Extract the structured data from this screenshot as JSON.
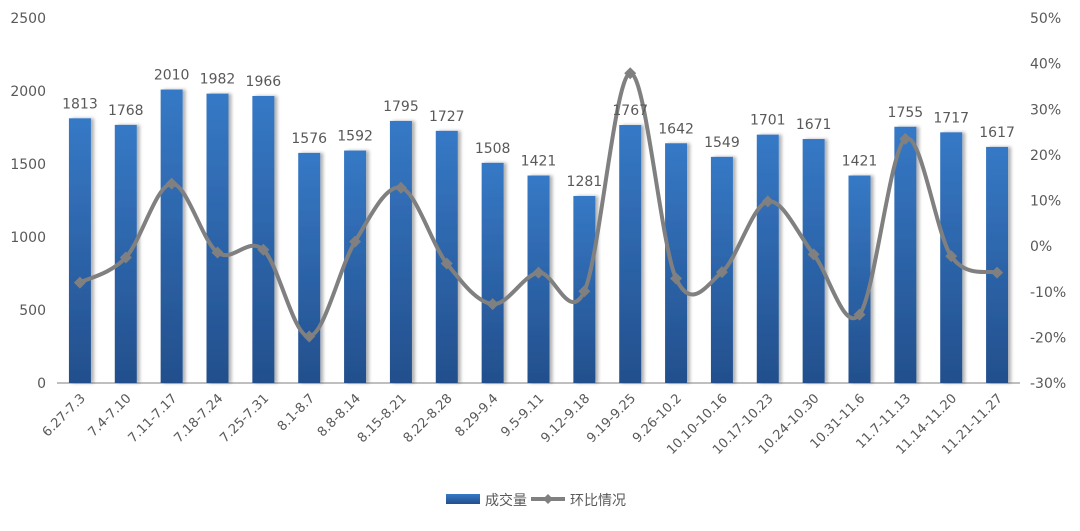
{
  "chart_data": {
    "type": "bar+line",
    "title": "",
    "categories": [
      "6.27-7.3",
      "7.4-7.10",
      "7.11-7.17",
      "7.18-7.24",
      "7.25-7.31",
      "8.1-8.7",
      "8.8-8.14",
      "8.15-8.21",
      "8.22-8.28",
      "8.29-9.4",
      "9.5-9.11",
      "9.12-9.18",
      "9.19-9.25",
      "9.26-10.2",
      "10.10-10.16",
      "10.17-10.23",
      "10.24-10.30",
      "10.31-11.6",
      "11.7-11.13",
      "11.14-11.20",
      "11.21-11.27"
    ],
    "series": [
      {
        "name": "成交量",
        "type": "bar",
        "axis": "left",
        "color": "#2e6bb5",
        "values": [
          1813,
          1768,
          2010,
          1982,
          1966,
          1576,
          1592,
          1795,
          1727,
          1508,
          1421,
          1281,
          1767,
          1642,
          1549,
          1701,
          1671,
          1421,
          1755,
          1717,
          1617
        ]
      },
      {
        "name": "环比情况",
        "type": "line",
        "axis": "right",
        "color": "#808080",
        "values": [
          -8.0,
          -2.5,
          13.7,
          -1.4,
          -0.8,
          -19.8,
          1.0,
          12.8,
          -3.8,
          -12.7,
          -5.8,
          -9.9,
          37.9,
          -7.1,
          -5.7,
          9.8,
          -1.8,
          -15.0,
          23.5,
          -2.2,
          -5.8
        ]
      }
    ],
    "y_left": {
      "ylim": [
        0,
        2500
      ],
      "ticks": [
        "0",
        "500",
        "1000",
        "1500",
        "2000",
        "2500"
      ]
    },
    "y_right": {
      "ylim": [
        -30,
        50
      ],
      "ticks": [
        "-30%",
        "-20%",
        "-10%",
        "0%",
        "10%",
        "20%",
        "30%",
        "40%",
        "50%"
      ]
    },
    "grid": false,
    "legend": {
      "placement": "bottom",
      "items": [
        "成交量",
        "环比情况"
      ]
    }
  }
}
